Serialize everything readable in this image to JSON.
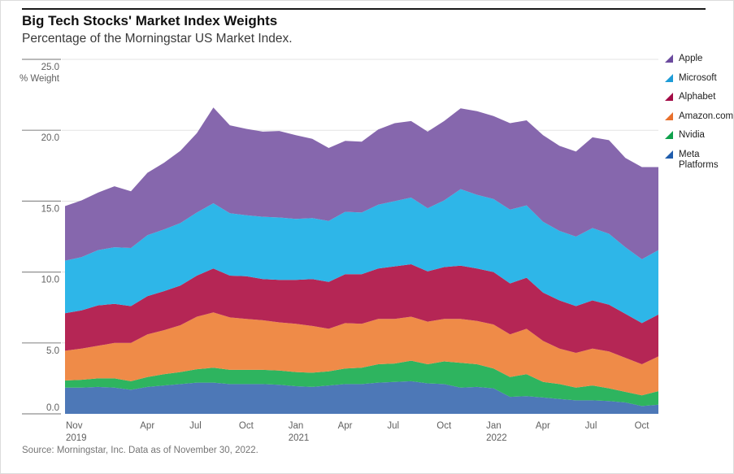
{
  "header": {
    "title": "Big Tech Stocks' Market Index Weights",
    "subtitle": "Percentage of the Morningstar US Market Index."
  },
  "y_axis": {
    "unit_label": "% Weight",
    "tick_values": [
      0,
      5,
      10,
      15,
      20,
      25
    ],
    "tick_labels": [
      "0.0",
      "5.0",
      "10.0",
      "15.0",
      "20.0",
      "25.0"
    ]
  },
  "x_axis": {
    "ticks": [
      {
        "label": "Nov",
        "sublabel": "2019",
        "month": 0
      },
      {
        "label": "Apr",
        "sublabel": "",
        "month": 4.5
      },
      {
        "label": "Jul",
        "sublabel": "",
        "month": 7.5
      },
      {
        "label": "Oct",
        "sublabel": "",
        "month": 10.5
      },
      {
        "label": "Jan",
        "sublabel": "2021",
        "month": 13.5
      },
      {
        "label": "Apr",
        "sublabel": "",
        "month": 16.5
      },
      {
        "label": "Jul",
        "sublabel": "",
        "month": 19.5
      },
      {
        "label": "Oct",
        "sublabel": "",
        "month": 22.5
      },
      {
        "label": "Jan",
        "sublabel": "2022",
        "month": 25.5
      },
      {
        "label": "Apr",
        "sublabel": "",
        "month": 28.5
      },
      {
        "label": "Jul",
        "sublabel": "",
        "month": 31.5
      },
      {
        "label": "Oct",
        "sublabel": "",
        "month": 34.5
      }
    ]
  },
  "legend": {
    "items": [
      {
        "label": "Apple",
        "color": "#6b4a9e"
      },
      {
        "label": "Microsoft",
        "color": "#1e9cd7"
      },
      {
        "label": "Alphabet",
        "color": "#a30c46"
      },
      {
        "label": "Amazon.com",
        "color": "#e8702d"
      },
      {
        "label": "Nvidia",
        "color": "#0fa14c"
      },
      {
        "label": "Meta Platforms",
        "color": "#1f5cac"
      }
    ]
  },
  "chart_data": {
    "type": "area",
    "stacked": true,
    "title": "Big Tech Stocks' Market Index Weights",
    "subtitle": "Percentage of the Morningstar US Market Index.",
    "ylabel": "% Weight",
    "ylim": [
      0,
      25
    ],
    "grid": "horizontal",
    "legend_position": "right",
    "x_labels": [
      "Nov 2019",
      "Dec 2019",
      "Jan 2020",
      "Feb 2020",
      "Mar 2020",
      "Apr 2020",
      "May 2020",
      "Jun 2020",
      "Jul 2020",
      "Aug 2020",
      "Sep 2020",
      "Oct 2020",
      "Nov 2020",
      "Dec 2020",
      "Jan 2021",
      "Feb 2021",
      "Mar 2021",
      "Apr 2021",
      "May 2021",
      "Jun 2021",
      "Jul 2021",
      "Aug 2021",
      "Sep 2021",
      "Oct 2021",
      "Nov 2021",
      "Dec 2021",
      "Jan 2022",
      "Feb 2022",
      "Mar 2022",
      "Apr 2022",
      "May 2022",
      "Jun 2022",
      "Jul 2022",
      "Aug 2022",
      "Sep 2022",
      "Oct 2022",
      "Nov 2022"
    ],
    "series": [
      {
        "name": "Meta Platforms",
        "color": "#4d78b7",
        "values": [
          1.85,
          1.85,
          1.9,
          1.85,
          1.7,
          1.9,
          2.0,
          2.1,
          2.2,
          2.2,
          2.1,
          2.1,
          2.1,
          2.05,
          1.95,
          1.9,
          2.0,
          2.1,
          2.1,
          2.2,
          2.25,
          2.3,
          2.15,
          2.1,
          1.85,
          1.9,
          1.8,
          1.2,
          1.25,
          1.15,
          1.05,
          0.95,
          0.95,
          0.9,
          0.8,
          0.55,
          0.65
        ]
      },
      {
        "name": "Nvidia",
        "color": "#2eb45f",
        "values": [
          0.5,
          0.55,
          0.6,
          0.65,
          0.6,
          0.7,
          0.8,
          0.85,
          0.95,
          1.05,
          1.0,
          1.0,
          1.0,
          1.0,
          1.0,
          1.0,
          1.0,
          1.1,
          1.15,
          1.3,
          1.3,
          1.45,
          1.35,
          1.6,
          1.75,
          1.6,
          1.4,
          1.4,
          1.55,
          1.1,
          1.05,
          0.9,
          1.05,
          0.9,
          0.75,
          0.75,
          0.95
        ]
      },
      {
        "name": "Amazon.com",
        "color": "#ef8b48",
        "values": [
          2.1,
          2.2,
          2.3,
          2.5,
          2.7,
          3.0,
          3.1,
          3.3,
          3.7,
          3.9,
          3.7,
          3.6,
          3.5,
          3.4,
          3.4,
          3.3,
          3.0,
          3.2,
          3.1,
          3.2,
          3.15,
          3.1,
          3.0,
          3.0,
          3.1,
          3.05,
          3.1,
          3.0,
          3.2,
          2.9,
          2.5,
          2.45,
          2.6,
          2.6,
          2.4,
          2.2,
          2.45
        ]
      },
      {
        "name": "Alphabet",
        "color": "#b52655",
        "values": [
          2.65,
          2.7,
          2.85,
          2.75,
          2.6,
          2.7,
          2.75,
          2.8,
          2.9,
          3.1,
          2.95,
          3.0,
          2.9,
          3.0,
          3.1,
          3.3,
          3.3,
          3.45,
          3.5,
          3.55,
          3.7,
          3.7,
          3.55,
          3.65,
          3.75,
          3.7,
          3.7,
          3.6,
          3.6,
          3.4,
          3.4,
          3.3,
          3.4,
          3.3,
          3.1,
          2.9,
          2.95
        ]
      },
      {
        "name": "Microsoft",
        "color": "#2eb6e8",
        "values": [
          3.7,
          3.75,
          3.9,
          4.0,
          4.1,
          4.3,
          4.35,
          4.4,
          4.45,
          4.6,
          4.4,
          4.3,
          4.4,
          4.4,
          4.3,
          4.3,
          4.3,
          4.4,
          4.35,
          4.5,
          4.6,
          4.7,
          4.45,
          4.7,
          5.4,
          5.2,
          5.15,
          5.2,
          5.1,
          5.0,
          4.9,
          4.9,
          5.1,
          5.0,
          4.7,
          4.5,
          4.55
        ]
      },
      {
        "name": "Apple",
        "color": "#8667ad",
        "values": [
          3.85,
          4.0,
          4.05,
          4.3,
          4.0,
          4.4,
          4.7,
          5.1,
          5.6,
          6.75,
          6.2,
          6.1,
          6.0,
          6.1,
          5.9,
          5.6,
          5.15,
          5.0,
          5.0,
          5.3,
          5.5,
          5.4,
          5.4,
          5.6,
          5.7,
          5.9,
          5.85,
          6.1,
          6.0,
          6.1,
          6.0,
          6.0,
          6.4,
          6.6,
          6.3,
          6.5,
          5.85
        ]
      }
    ]
  },
  "source": "Source: Morningstar, Inc. Data as of November 30, 2022."
}
